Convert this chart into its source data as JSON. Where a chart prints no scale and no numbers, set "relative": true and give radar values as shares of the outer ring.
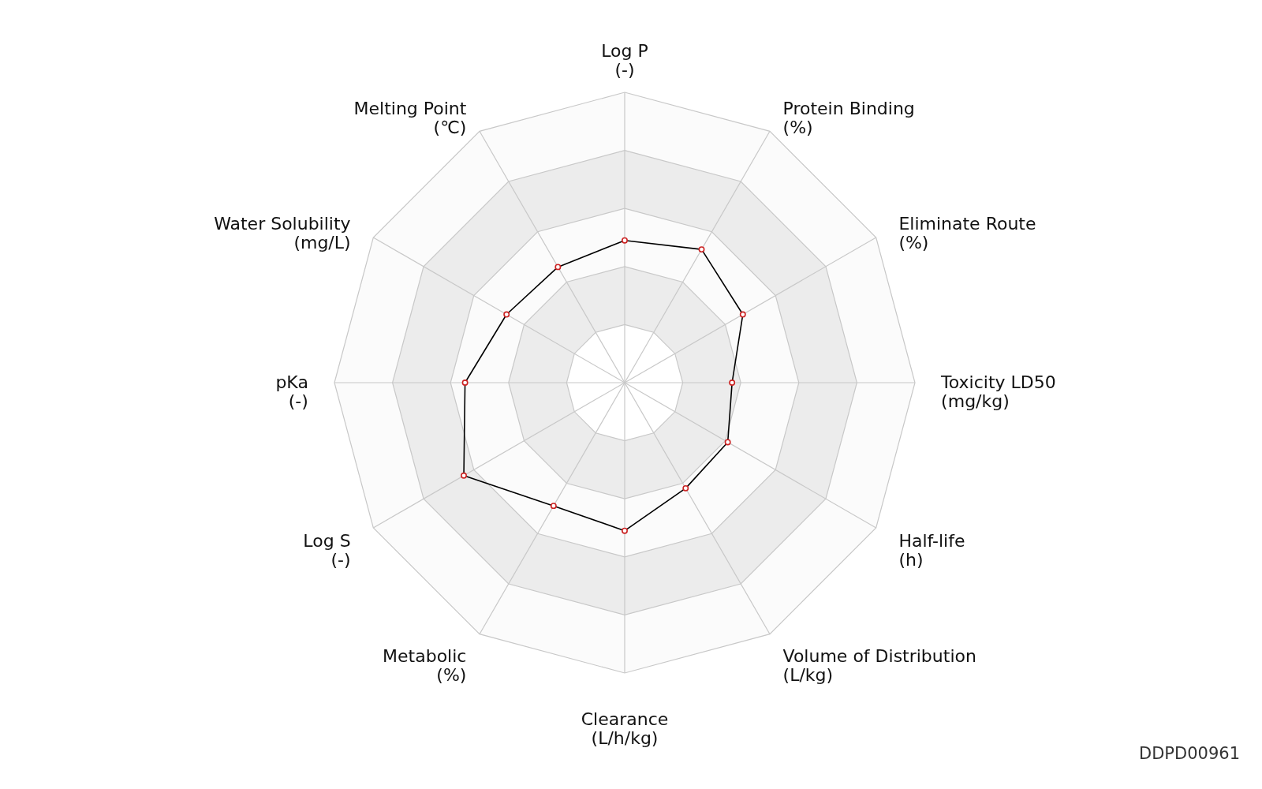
{
  "chart_data": {
    "type": "radar",
    "relative": true,
    "grid": true,
    "marker": "circle",
    "line_style": "solid",
    "categories": [
      "Log P\n(-)",
      "Protein Binding\n(%)",
      "Eliminate Route\n(%)",
      "Toxicity LD50\n(mg/kg)",
      "Half-life\n(h)",
      "Volume of Distribution\n(L/kg)",
      "Clearance\n(L/h/kg)",
      "Metabolic\n(%)",
      "Log S\n(-)",
      "pKa\n(-)",
      "Water Solubility\n(mg/L)",
      "Melting Point\n(℃)"
    ],
    "series": [
      {
        "color": "#000000",
        "values": [
          0.49,
          0.53,
          0.47,
          0.37,
          0.41,
          0.42,
          0.51,
          0.49,
          0.64,
          0.55,
          0.47,
          0.46
        ]
      }
    ],
    "annotations": [
      "DDPD00961"
    ]
  }
}
